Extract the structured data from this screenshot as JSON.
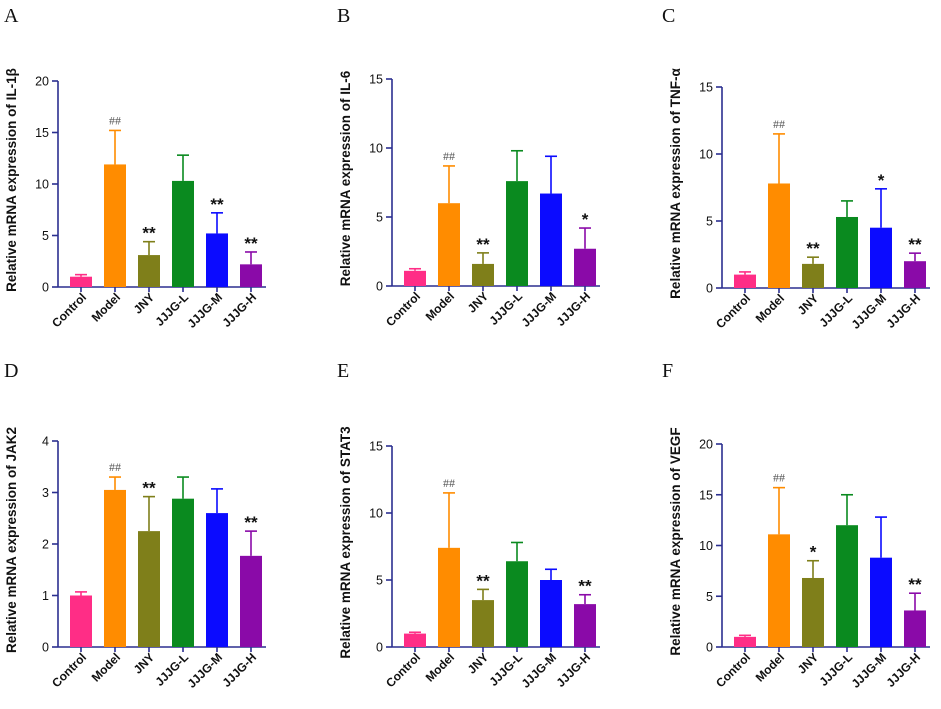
{
  "categories": [
    "Control",
    "Model",
    "JNY",
    "JJJG-L",
    "JJJG-M",
    "JJJG-H"
  ],
  "colors": {
    "Control": "#ff2d86",
    "Model": "#ff8c00",
    "JNY": "#7f7f1a",
    "JJJG-L": "#0a8a1f",
    "JJJG-M": "#0b0bff",
    "JJJG-H": "#8a0aa8",
    "axis": "#2b2f8f"
  },
  "chart_data": [
    {
      "panel": "A",
      "type": "bar",
      "title": "",
      "ylabel": "Relative mRNA expression of IL-1β",
      "ylim": [
        0,
        20
      ],
      "yticks": [
        0,
        5,
        10,
        15,
        20
      ],
      "categories": [
        "Control",
        "Model",
        "JNY",
        "JJJG-L",
        "JJJG-M",
        "JJJG-H"
      ],
      "values": [
        1.0,
        11.9,
        3.1,
        10.3,
        5.2,
        2.2
      ],
      "errors": [
        0.2,
        3.3,
        1.3,
        2.5,
        2.0,
        1.2
      ],
      "annotations": [
        "",
        "##",
        "**",
        "",
        "**",
        "**"
      ]
    },
    {
      "panel": "B",
      "type": "bar",
      "title": "",
      "ylabel": "Relative mRNA expression of IL-6",
      "ylim": [
        0,
        15
      ],
      "yticks": [
        0,
        5,
        10,
        15
      ],
      "categories": [
        "Control",
        "Model",
        "JNY",
        "JJJG-L",
        "JJJG-M",
        "JJJG-H"
      ],
      "values": [
        1.1,
        6.0,
        1.6,
        7.6,
        6.7,
        2.7
      ],
      "errors": [
        0.15,
        2.7,
        0.8,
        2.2,
        2.7,
        1.5
      ],
      "annotations": [
        "",
        "##",
        "**",
        "",
        "",
        "*"
      ]
    },
    {
      "panel": "C",
      "type": "bar",
      "title": "",
      "ylabel": "Relative mRNA expression of TNF-α",
      "ylim": [
        0,
        15
      ],
      "yticks": [
        0,
        5,
        10,
        15
      ],
      "categories": [
        "Control",
        "Model",
        "JNY",
        "JJJG-L",
        "JJJG-M",
        "JJJG-H"
      ],
      "values": [
        1.0,
        7.8,
        1.8,
        5.3,
        4.5,
        2.0
      ],
      "errors": [
        0.2,
        3.7,
        0.5,
        1.2,
        2.9,
        0.6
      ],
      "annotations": [
        "",
        "##",
        "**",
        "",
        "*",
        "**"
      ]
    },
    {
      "panel": "D",
      "type": "bar",
      "title": "",
      "ylabel": "Relative mRNA expression of JAK2",
      "ylim": [
        0,
        4
      ],
      "yticks": [
        0,
        1,
        2,
        3,
        4
      ],
      "categories": [
        "Control",
        "Model",
        "JNY",
        "JJJG-L",
        "JJJG-M",
        "JJJG-H"
      ],
      "values": [
        1.0,
        3.05,
        2.25,
        2.88,
        2.6,
        1.77
      ],
      "errors": [
        0.07,
        0.25,
        0.67,
        0.42,
        0.47,
        0.48
      ],
      "annotations": [
        "",
        "##",
        "**",
        "",
        "",
        "**"
      ]
    },
    {
      "panel": "E",
      "type": "bar",
      "title": "",
      "ylabel": "Relative mRNA expression of STAT3",
      "ylim": [
        0,
        15
      ],
      "yticks": [
        0,
        5,
        10,
        15
      ],
      "categories": [
        "Control",
        "Model",
        "JNY",
        "JJJG-L",
        "JJJG-M",
        "JJJG-H"
      ],
      "values": [
        1.0,
        7.4,
        3.5,
        6.4,
        5.0,
        3.2
      ],
      "errors": [
        0.1,
        4.1,
        0.8,
        1.4,
        0.8,
        0.7
      ],
      "annotations": [
        "",
        "##",
        "**",
        "",
        "",
        "**"
      ]
    },
    {
      "panel": "F",
      "type": "bar",
      "title": "",
      "ylabel": "Relative mRNA expression of VEGF",
      "ylim": [
        0,
        20
      ],
      "yticks": [
        0,
        5,
        10,
        15,
        20
      ],
      "categories": [
        "Control",
        "Model",
        "JNY",
        "JJJG-L",
        "JJJG-M",
        "JJJG-H"
      ],
      "values": [
        1.0,
        11.1,
        6.8,
        12.0,
        8.8,
        3.6
      ],
      "errors": [
        0.15,
        4.6,
        1.7,
        3.0,
        4.0,
        1.7
      ],
      "annotations": [
        "",
        "##",
        "*",
        "",
        "",
        "**"
      ]
    }
  ]
}
